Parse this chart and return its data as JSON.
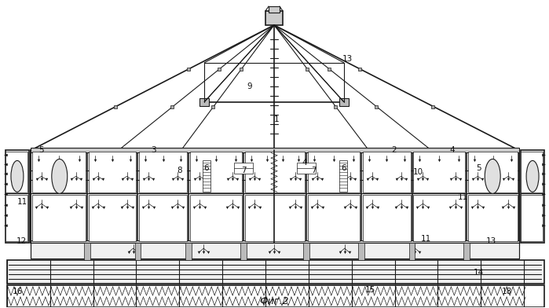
{
  "title": "Фиг.2",
  "bg_color": "#ffffff",
  "lc": "#1a1a1a",
  "fig_width": 6.99,
  "fig_height": 3.92,
  "dpi": 100,
  "labels": [
    [
      "1",
      352,
      152
    ],
    [
      "2",
      502,
      192
    ],
    [
      "3",
      195,
      192
    ],
    [
      "4",
      576,
      192
    ],
    [
      "4",
      388,
      208
    ],
    [
      "5",
      52,
      192
    ],
    [
      "5",
      610,
      215
    ],
    [
      "6",
      262,
      215
    ],
    [
      "6",
      438,
      215
    ],
    [
      "7",
      310,
      218
    ],
    [
      "7",
      400,
      218
    ],
    [
      "8",
      228,
      218
    ],
    [
      "9",
      318,
      110
    ],
    [
      "10",
      533,
      220
    ],
    [
      "11",
      28,
      258
    ],
    [
      "11",
      590,
      252
    ],
    [
      "11",
      543,
      305
    ],
    [
      "12",
      27,
      308
    ],
    [
      "13",
      443,
      75
    ],
    [
      "13",
      626,
      308
    ],
    [
      "14",
      610,
      348
    ],
    [
      "15",
      472,
      370
    ],
    [
      "16",
      22,
      372
    ],
    [
      "18",
      646,
      372
    ]
  ]
}
